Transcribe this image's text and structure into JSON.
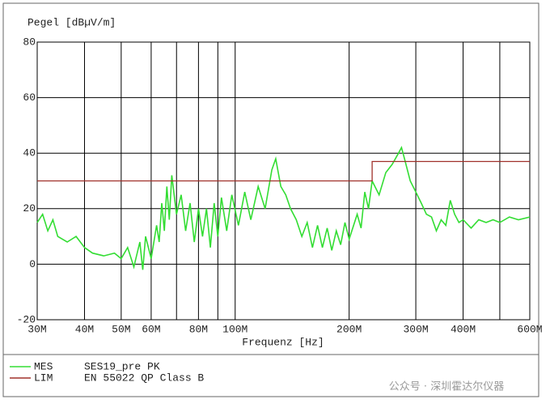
{
  "chart_data": {
    "type": "line",
    "y_label": "Pegel [dBµV/m]",
    "x_label": "Frequenz [Hz]",
    "log_x": true,
    "grid": true,
    "xlim": [
      30000000.0,
      600000000.0
    ],
    "ylim": [
      -20,
      80
    ],
    "yticks": [
      -20,
      0,
      20,
      40,
      60,
      80
    ],
    "xticks": [
      {
        "value": 30000000.0,
        "label": "30M"
      },
      {
        "value": 40000000.0,
        "label": "40M"
      },
      {
        "value": 50000000.0,
        "label": "50M"
      },
      {
        "value": 60000000.0,
        "label": "60M"
      },
      {
        "value": 80000000.0,
        "label": "80M"
      },
      {
        "value": 100000000.0,
        "label": "100M"
      },
      {
        "value": 200000000.0,
        "label": "200M"
      },
      {
        "value": 300000000.0,
        "label": "300M"
      },
      {
        "value": 400000000.0,
        "label": "400M"
      },
      {
        "value": 600000000.0,
        "label": "600M"
      }
    ],
    "xgrid": [
      70000000.0,
      90000000.0,
      500000000.0
    ],
    "series": [
      {
        "name": "MES",
        "description": "SES19_pre PK",
        "color": "#33dd33",
        "x": [
          30000000.0,
          31000000.0,
          32000000.0,
          33000000.0,
          34000000.0,
          36000000.0,
          38000000.0,
          40000000.0,
          42000000.0,
          45000000.0,
          48000000.0,
          50000000.0,
          52000000.0,
          54000000.0,
          56000000.0,
          57000000.0,
          58000000.0,
          60000000.0,
          62000000.0,
          63000000.0,
          64000000.0,
          65000000.0,
          66000000.0,
          67000000.0,
          68000000.0,
          70000000.0,
          72000000.0,
          74000000.0,
          76000000.0,
          78000000.0,
          80000000.0,
          82000000.0,
          84000000.0,
          86000000.0,
          88000000.0,
          90000000.0,
          92000000.0,
          95000000.0,
          98000000.0,
          102000000.0,
          106000000.0,
          110000000.0,
          115000000.0,
          120000000.0,
          125000000.0,
          128000000.0,
          132000000.0,
          136000000.0,
          140000000.0,
          145000000.0,
          150000000.0,
          155000000.0,
          160000000.0,
          165000000.0,
          170000000.0,
          175000000.0,
          180000000.0,
          185000000.0,
          190000000.0,
          195000000.0,
          200000000.0,
          210000000.0,
          215000000.0,
          220000000.0,
          225000000.0,
          230000000.0,
          240000000.0,
          250000000.0,
          260000000.0,
          270000000.0,
          275000000.0,
          280000000.0,
          290000000.0,
          300000000.0,
          310000000.0,
          320000000.0,
          330000000.0,
          340000000.0,
          350000000.0,
          360000000.0,
          370000000.0,
          380000000.0,
          390000000.0,
          400000000.0,
          420000000.0,
          440000000.0,
          460000000.0,
          480000000.0,
          500000000.0,
          530000000.0,
          560000000.0,
          600000000.0
        ],
        "values": [
          15,
          18,
          12,
          16,
          10,
          8,
          10,
          6,
          4,
          3,
          4,
          2,
          6,
          -1,
          8,
          -2,
          10,
          2,
          14,
          8,
          22,
          12,
          28,
          16,
          32,
          18,
          25,
          12,
          22,
          8,
          20,
          10,
          20,
          6,
          22,
          10,
          24,
          12,
          25,
          14,
          26,
          16,
          28,
          20,
          34,
          38,
          28,
          25,
          20,
          16,
          10,
          15,
          6,
          14,
          6,
          13,
          5,
          12,
          7,
          15,
          9,
          18,
          13,
          26,
          20,
          30,
          25,
          33,
          36,
          40,
          42,
          38,
          30,
          26,
          22,
          18,
          17,
          12,
          16,
          14,
          23,
          18,
          15,
          16,
          13,
          16,
          15,
          16,
          15,
          17,
          16,
          17
        ]
      },
      {
        "name": "LIM",
        "description": "EN 55022 QP Class B",
        "color": "#a0302a",
        "x": [
          30000000.0,
          230000000.0,
          230000000.0,
          600000000.0
        ],
        "values": [
          30,
          30,
          37,
          37
        ]
      }
    ],
    "watermark": "公众号 · 深圳霍达尔仪器"
  }
}
